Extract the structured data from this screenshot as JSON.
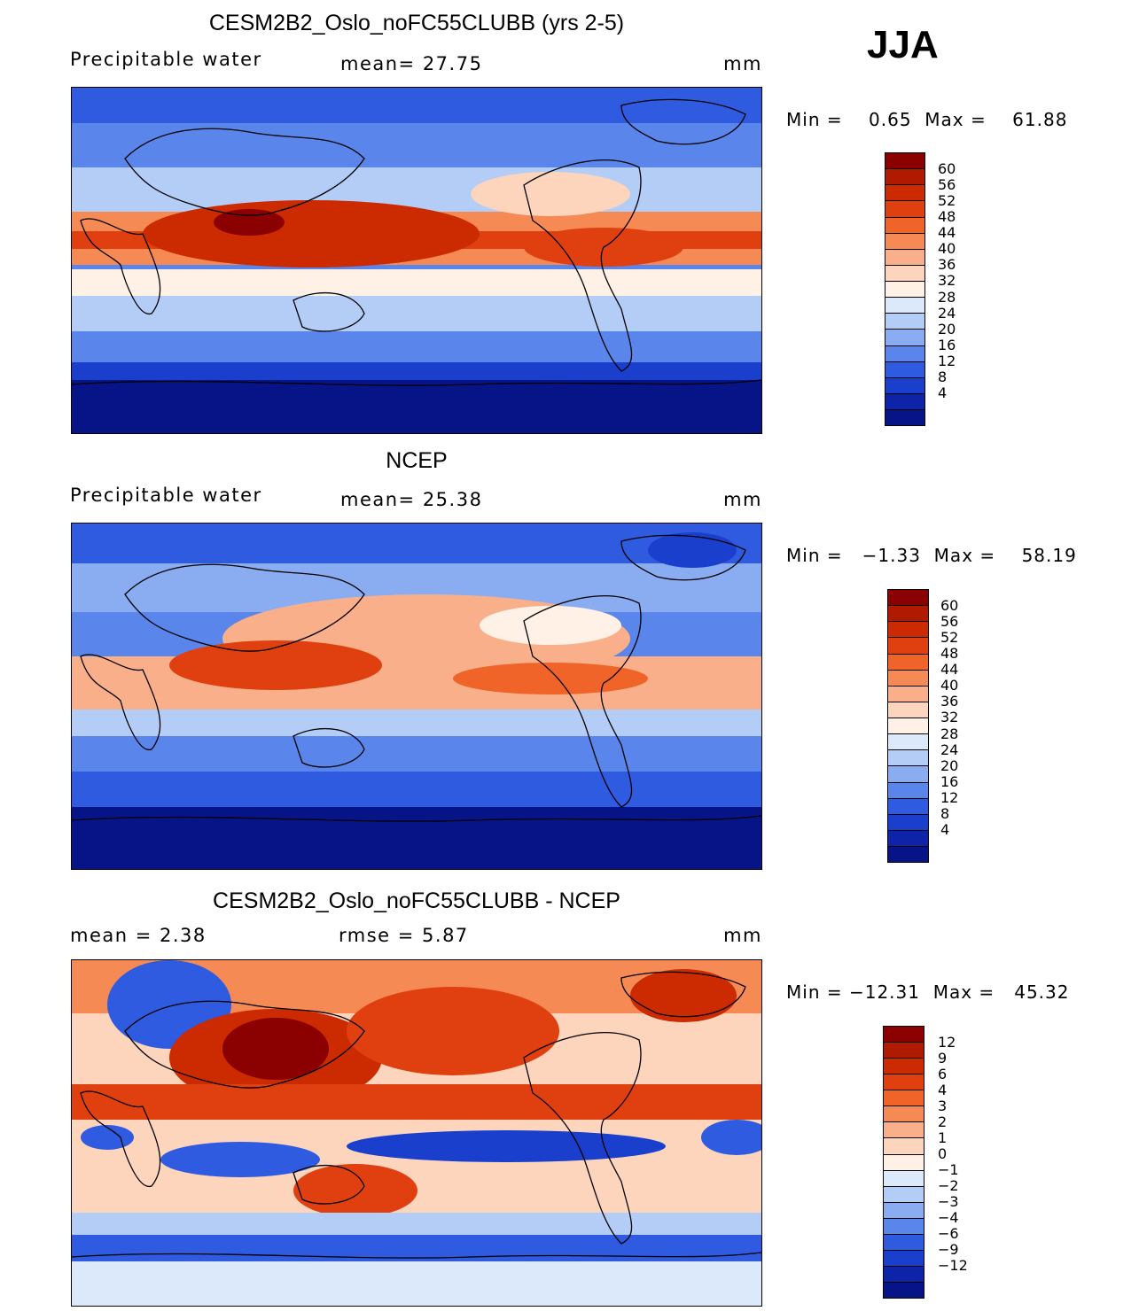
{
  "season": "JJA",
  "panels": [
    {
      "title": "CESM2B2_Oslo_noFC55CLUBB (yrs 2-5)",
      "left_label": "Precipitable water",
      "mid_label": "mean=   27.75",
      "units": "mm",
      "minmax": "Min =    0.65  Max =    61.88",
      "colorbar_labels": [
        "60",
        "56",
        "52",
        "48",
        "44",
        "40",
        "36",
        "32",
        "28",
        "24",
        "20",
        "16",
        "12",
        "8",
        "4"
      ],
      "colors": [
        "#8b0000",
        "#b01a00",
        "#cc2a00",
        "#e04010",
        "#f0642a",
        "#f58a55",
        "#f9b08a",
        "#fdd5bc",
        "#fff1e6",
        "#dbe9fb",
        "#b4cdf6",
        "#8aacf0",
        "#5a85ea",
        "#2f5be0",
        "#1a3fcd",
        "#0d24a8",
        "#071487"
      ]
    },
    {
      "title": "NCEP",
      "left_label": "Precipitable water",
      "mid_label": "mean=   25.38",
      "units": "mm",
      "minmax": "Min =   −1.33  Max =    58.19",
      "colorbar_labels": [
        "60",
        "56",
        "52",
        "48",
        "44",
        "40",
        "36",
        "32",
        "28",
        "24",
        "20",
        "16",
        "12",
        "8",
        "4"
      ],
      "colors": [
        "#8b0000",
        "#b01a00",
        "#cc2a00",
        "#e04010",
        "#f0642a",
        "#f58a55",
        "#f9b08a",
        "#fdd5bc",
        "#fff1e6",
        "#dbe9fb",
        "#b4cdf6",
        "#8aacf0",
        "#5a85ea",
        "#2f5be0",
        "#1a3fcd",
        "#0d24a8",
        "#071487"
      ]
    },
    {
      "title": "CESM2B2_Oslo_noFC55CLUBB - NCEP",
      "left_label": "mean =    2.38",
      "mid_label": "rmse =    5.87",
      "units": "mm",
      "minmax": "Min = −12.31  Max =   45.32",
      "colorbar_labels": [
        "12",
        "9",
        "6",
        "4",
        "3",
        "2",
        "1",
        "0",
        "−1",
        "−2",
        "−3",
        "−4",
        "−6",
        "−9",
        "−12"
      ],
      "colors": [
        "#8b0000",
        "#b01a00",
        "#cc2a00",
        "#e04010",
        "#f0642a",
        "#f58a55",
        "#f9b08a",
        "#fdd5bc",
        "#fff1e6",
        "#dbe9fb",
        "#b4cdf6",
        "#8aacf0",
        "#5a85ea",
        "#2f5be0",
        "#1a3fcd",
        "#0d24a8",
        "#071487"
      ]
    }
  ]
}
